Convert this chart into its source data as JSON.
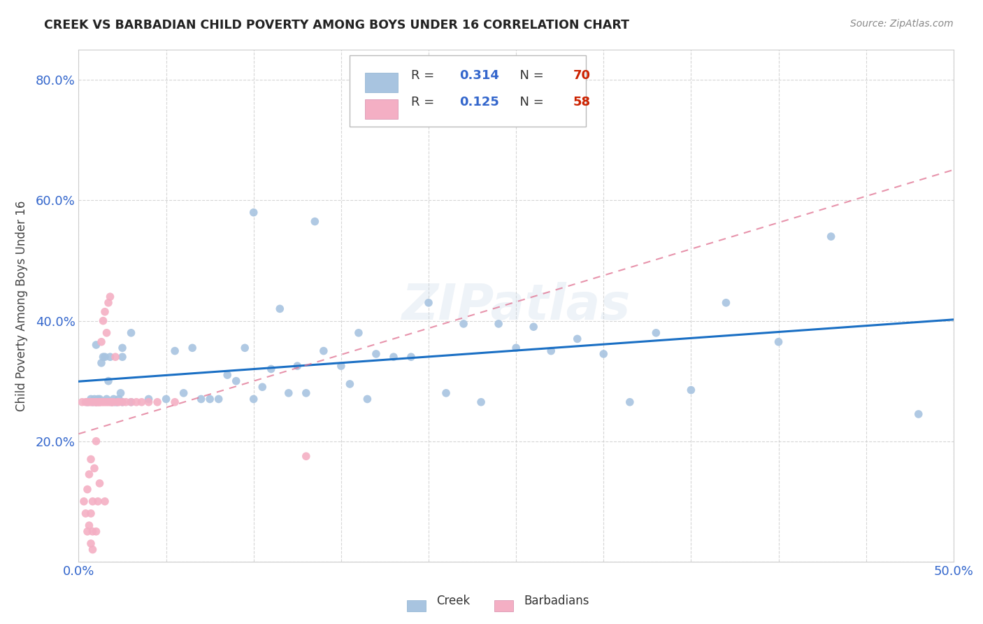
{
  "title": "CREEK VS BARBADIAN CHILD POVERTY AMONG BOYS UNDER 16 CORRELATION CHART",
  "source": "Source: ZipAtlas.com",
  "ylabel": "Child Poverty Among Boys Under 16",
  "xlim": [
    0.0,
    0.5
  ],
  "ylim": [
    0.0,
    0.85
  ],
  "creek_color": "#a8c4e0",
  "barbadian_color": "#f4afc4",
  "creek_line_color": "#1a6fc4",
  "barbadian_line_color": "#e07090",
  "creek_R": 0.314,
  "creek_N": 70,
  "barbadian_R": 0.125,
  "barbadian_N": 58,
  "watermark": "ZIPatlas",
  "legend_R_color": "#3366cc",
  "legend_N_color": "#cc2200",
  "creek_x": [
    0.005,
    0.007,
    0.008,
    0.009,
    0.01,
    0.01,
    0.011,
    0.012,
    0.013,
    0.014,
    0.015,
    0.016,
    0.017,
    0.018,
    0.019,
    0.02,
    0.021,
    0.022,
    0.023,
    0.024,
    0.025,
    0.025,
    0.025,
    0.03,
    0.03,
    0.04,
    0.05,
    0.055,
    0.06,
    0.065,
    0.07,
    0.075,
    0.08,
    0.085,
    0.09,
    0.095,
    0.1,
    0.1,
    0.105,
    0.11,
    0.115,
    0.12,
    0.125,
    0.13,
    0.135,
    0.14,
    0.15,
    0.155,
    0.16,
    0.165,
    0.17,
    0.18,
    0.19,
    0.2,
    0.21,
    0.22,
    0.23,
    0.24,
    0.25,
    0.26,
    0.27,
    0.285,
    0.3,
    0.315,
    0.33,
    0.35,
    0.37,
    0.4,
    0.43,
    0.48
  ],
  "creek_y": [
    0.265,
    0.27,
    0.265,
    0.27,
    0.265,
    0.36,
    0.27,
    0.27,
    0.33,
    0.34,
    0.34,
    0.27,
    0.3,
    0.34,
    0.265,
    0.27,
    0.265,
    0.265,
    0.27,
    0.28,
    0.265,
    0.355,
    0.34,
    0.265,
    0.38,
    0.27,
    0.27,
    0.35,
    0.28,
    0.355,
    0.27,
    0.27,
    0.27,
    0.31,
    0.3,
    0.355,
    0.27,
    0.58,
    0.29,
    0.32,
    0.42,
    0.28,
    0.325,
    0.28,
    0.565,
    0.35,
    0.325,
    0.295,
    0.38,
    0.27,
    0.345,
    0.34,
    0.34,
    0.43,
    0.28,
    0.395,
    0.265,
    0.395,
    0.355,
    0.39,
    0.35,
    0.37,
    0.345,
    0.265,
    0.38,
    0.285,
    0.43,
    0.365,
    0.54,
    0.245
  ],
  "barbadian_x": [
    0.002,
    0.003,
    0.004,
    0.004,
    0.005,
    0.005,
    0.005,
    0.006,
    0.006,
    0.006,
    0.007,
    0.007,
    0.007,
    0.007,
    0.008,
    0.008,
    0.008,
    0.008,
    0.009,
    0.009,
    0.01,
    0.01,
    0.01,
    0.01,
    0.011,
    0.011,
    0.011,
    0.012,
    0.012,
    0.012,
    0.013,
    0.013,
    0.014,
    0.014,
    0.015,
    0.015,
    0.015,
    0.016,
    0.016,
    0.017,
    0.017,
    0.018,
    0.018,
    0.019,
    0.019,
    0.02,
    0.021,
    0.022,
    0.023,
    0.025,
    0.027,
    0.03,
    0.033,
    0.036,
    0.04,
    0.045,
    0.055,
    0.13
  ],
  "barbadian_y": [
    0.265,
    0.1,
    0.265,
    0.08,
    0.265,
    0.05,
    0.12,
    0.265,
    0.145,
    0.06,
    0.265,
    0.17,
    0.08,
    0.03,
    0.265,
    0.1,
    0.05,
    0.02,
    0.265,
    0.155,
    0.265,
    0.265,
    0.2,
    0.05,
    0.265,
    0.265,
    0.1,
    0.265,
    0.265,
    0.13,
    0.265,
    0.365,
    0.265,
    0.4,
    0.265,
    0.415,
    0.1,
    0.265,
    0.38,
    0.265,
    0.43,
    0.265,
    0.44,
    0.265,
    0.265,
    0.265,
    0.34,
    0.265,
    0.265,
    0.265,
    0.265,
    0.265,
    0.265,
    0.265,
    0.265,
    0.265,
    0.265,
    0.175
  ]
}
